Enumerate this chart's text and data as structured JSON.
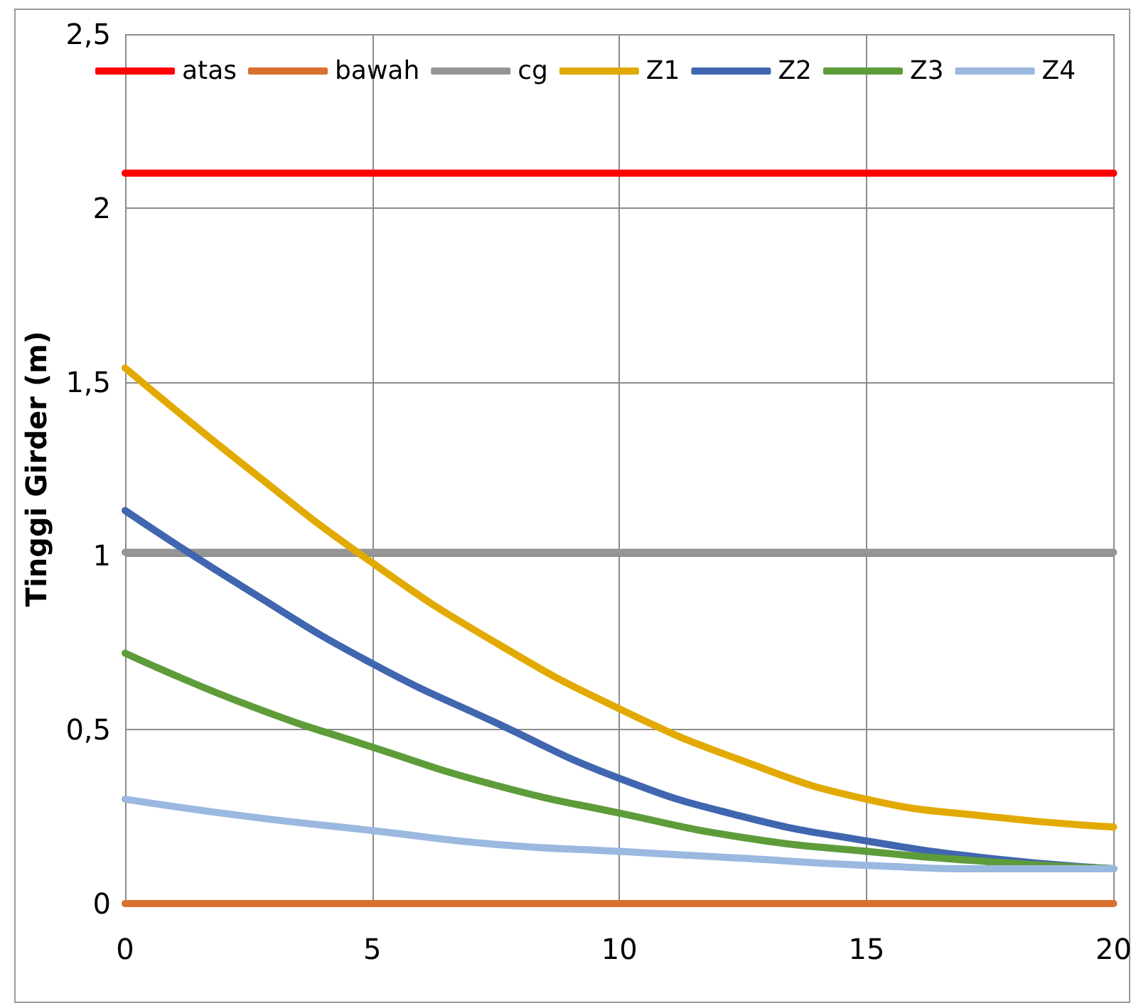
{
  "chart_data": {
    "type": "line",
    "ylabel": "Tinggi Girder (m)",
    "x": [
      0,
      2.5,
      5,
      7.5,
      10,
      12.5,
      15,
      17.5,
      20
    ],
    "series": [
      {
        "name": "atas",
        "color": "#ff0000",
        "values": [
          2.1,
          2.1,
          2.1,
          2.1,
          2.1,
          2.1,
          2.1,
          2.1,
          2.1
        ]
      },
      {
        "name": "bawah",
        "color": "#d9702e",
        "values": [
          0,
          0,
          0,
          0,
          0,
          0,
          0,
          0,
          0
        ]
      },
      {
        "name": "cg",
        "color": "#959595",
        "values": [
          1.01,
          1.01,
          1.01,
          1.01,
          1.01,
          1.01,
          1.01,
          1.01,
          1.01
        ]
      },
      {
        "name": "Z1",
        "color": "#e2aa00",
        "values": [
          1.54,
          1.25,
          0.98,
          0.75,
          0.56,
          0.41,
          0.3,
          0.25,
          0.22
        ]
      },
      {
        "name": "Z2",
        "color": "#4066b0",
        "values": [
          1.13,
          0.9,
          0.69,
          0.52,
          0.36,
          0.25,
          0.18,
          0.13,
          0.1
        ]
      },
      {
        "name": "Z3",
        "color": "#5e9c3a",
        "values": [
          0.72,
          0.57,
          0.45,
          0.34,
          0.26,
          0.19,
          0.15,
          0.12,
          0.1
        ]
      },
      {
        "name": "Z4",
        "color": "#9ab8e0",
        "values": [
          0.3,
          0.25,
          0.21,
          0.17,
          0.15,
          0.13,
          0.11,
          0.1,
          0.1
        ]
      }
    ],
    "xlim": [
      0,
      20
    ],
    "xticks": [
      0,
      5,
      10,
      15,
      20
    ],
    "ylim": [
      0,
      2.5
    ],
    "yticks": [
      0,
      {
        "value": 0.5,
        "label": "0,5"
      },
      1,
      {
        "value": 1.5,
        "label": "1,5"
      },
      2,
      {
        "value": 2.5,
        "label": "2,5"
      }
    ],
    "grid": true,
    "legend": "top",
    "marker": "none",
    "line_style": "solid"
  }
}
